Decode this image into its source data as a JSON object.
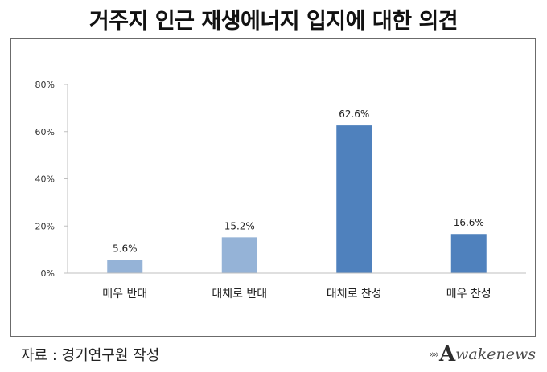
{
  "title": "거주지 인근 재생에너지 입지에 대한 의견",
  "source": "자료 : 경기연구원 작성",
  "logo": {
    "mark": "»»",
    "letter": "A",
    "word": "wakenews"
  },
  "chart_data": {
    "type": "bar",
    "categories": [
      "매우 반대",
      "대체로 반대",
      "대체로 찬성",
      "매우 찬성"
    ],
    "values": [
      5.6,
      15.2,
      62.6,
      16.6
    ],
    "data_labels": [
      "5.6%",
      "15.2%",
      "62.6%",
      "16.6%"
    ],
    "bar_colors": [
      "#95b3d7",
      "#95b3d7",
      "#4f81bd",
      "#4f81bd"
    ],
    "ylim": [
      0,
      80
    ],
    "yticks": [
      0,
      20,
      40,
      60,
      80
    ],
    "ytick_labels": [
      "0%",
      "20%",
      "40%",
      "60%",
      "80%"
    ],
    "grid": false,
    "legend": "none",
    "xlabel": "",
    "ylabel": ""
  }
}
